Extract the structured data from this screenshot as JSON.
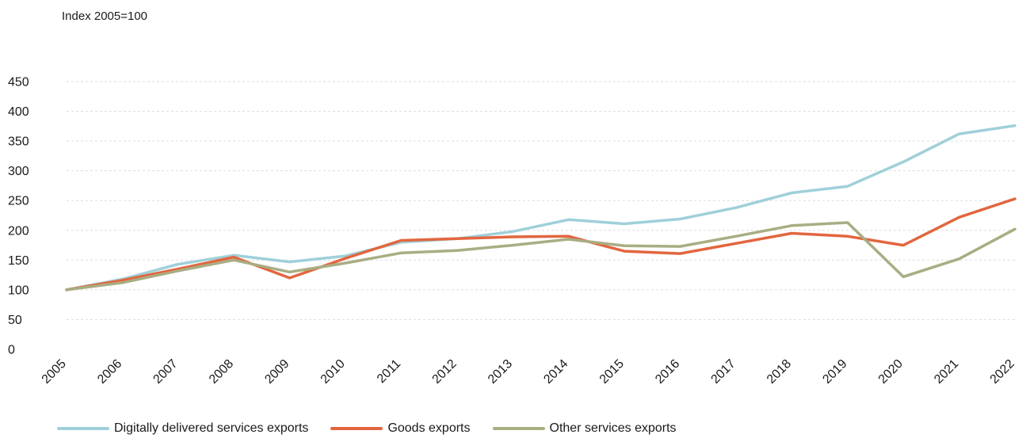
{
  "chart_data": {
    "type": "line",
    "unit_label": "Index 2005=100",
    "x": [
      "2005",
      "2006",
      "2007",
      "2008",
      "2009",
      "2010",
      "2011",
      "2012",
      "2013",
      "2014",
      "2015",
      "2016",
      "2017",
      "2018",
      "2019",
      "2020",
      "2021",
      "2022"
    ],
    "ylim": [
      0,
      450
    ],
    "yticks": [
      0,
      50,
      100,
      150,
      200,
      250,
      300,
      350,
      400,
      450
    ],
    "grid": true,
    "legend_position": "bottom",
    "series": [
      {
        "name": "Digitally delivered services exports",
        "color": "#9fd0d9",
        "values": [
          100,
          118,
          143,
          158,
          147,
          157,
          180,
          186,
          198,
          218,
          211,
          219,
          238,
          263,
          274,
          315,
          362,
          376
        ]
      },
      {
        "name": "Goods exports",
        "color": "#e2663f",
        "values": [
          100,
          116,
          135,
          155,
          120,
          153,
          183,
          186,
          189,
          190,
          165,
          161,
          178,
          195,
          190,
          175,
          222,
          253
        ]
      },
      {
        "name": "Other services exports",
        "color": "#a9ad83",
        "values": [
          100,
          112,
          132,
          150,
          130,
          145,
          162,
          166,
          175,
          185,
          174,
          173,
          190,
          208,
          213,
          122,
          152,
          202
        ]
      }
    ]
  }
}
